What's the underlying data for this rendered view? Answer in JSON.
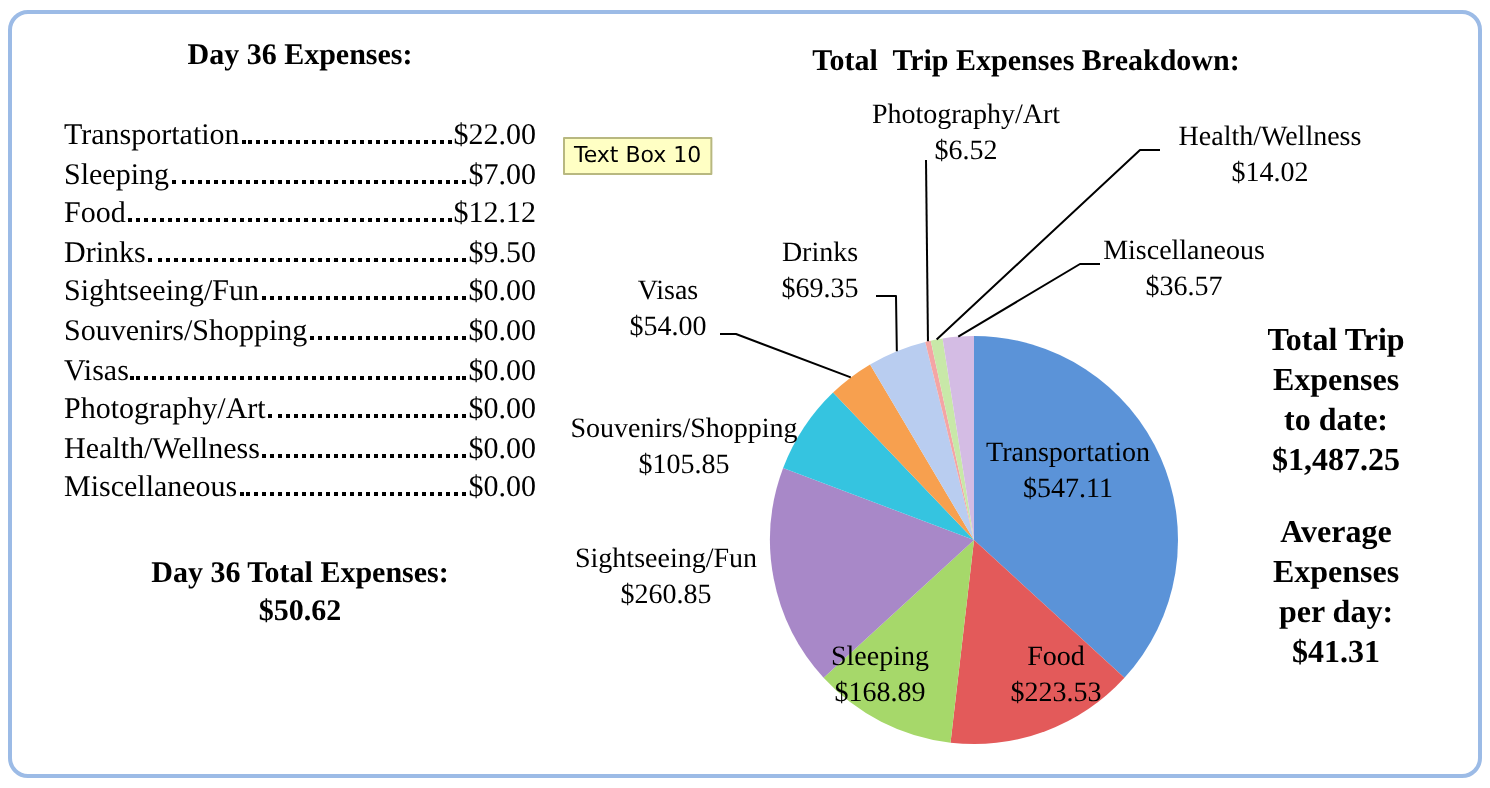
{
  "chart_data": [
    {
      "type": "other",
      "title": "Day 36  Expenses:",
      "annotations": [
        "Transportation",
        "$22.00",
        "Sleeping",
        "$7.00",
        "Food",
        "$12.12",
        "Drinks",
        "$9.50",
        "Sightseeing/Fun",
        "$0.00",
        "Souvenirs/Shopping",
        "$0.00",
        "Visas",
        "$0.00",
        "Photography/Art",
        "$0.00",
        "Health/Wellness",
        "$0.00",
        "Miscellaneous",
        "$0.00",
        "Day 36 Total Expenses:",
        "$50.62"
      ]
    },
    {
      "type": "pie",
      "title": "Total  Trip Expenses Breakdown:",
      "categories": [
        "Transportation",
        "Food",
        "Sleeping",
        "Sightseeing/Fun",
        "Souvenirs/Shopping",
        "Visas",
        "Drinks",
        "Photography/Art",
        "Health/Wellness",
        "Miscellaneous"
      ],
      "values": [
        547.11,
        223.53,
        168.89,
        260.85,
        105.85,
        54.0,
        69.35,
        6.52,
        14.02,
        36.57
      ],
      "value_labels": [
        "$547.11",
        "$223.53",
        "$168.89",
        "$260.85",
        "$105.85",
        "$54.00",
        "$69.35",
        "$6.52",
        "$14.02",
        "$36.57"
      ],
      "colors": [
        "#5b93d8",
        "#e35a5a",
        "#a6d86a",
        "#a888c8",
        "#35c4e0",
        "#f7a04f",
        "#b9cdf0",
        "#f4a5a5",
        "#c8e8a8",
        "#d4bce4"
      ],
      "annotations": [
        "Text Box 10",
        "Total Trip Expenses to date:",
        "$1,487.25",
        "Average Expenses per day:",
        "$41.31"
      ]
    }
  ]
}
